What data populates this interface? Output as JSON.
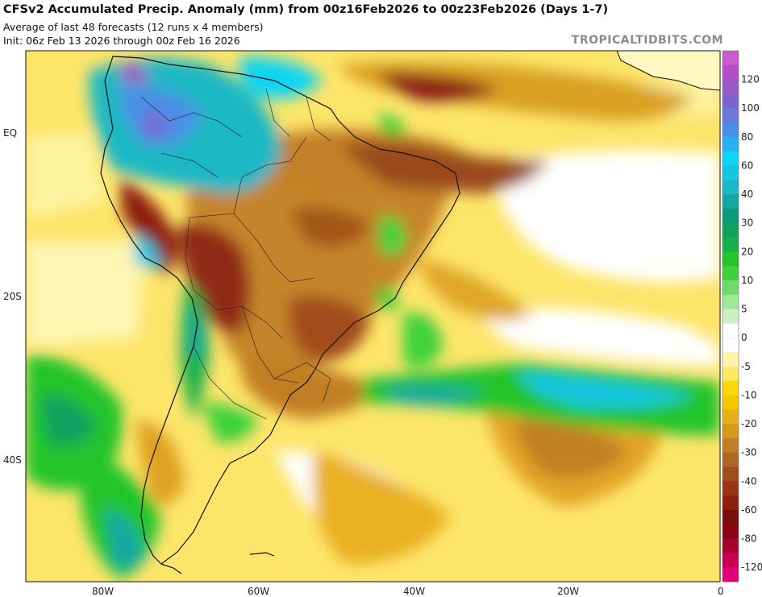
{
  "header": {
    "title": "CFSv2 Accumulated Precip. Anomaly (mm) from 00z16Feb2026 to 00z23Feb2026 (Days 1-7)",
    "subtitle": "Average of last 48 forecasts (12 runs x 4 members)",
    "init": "Init: 06z Feb 13 2026 through 00z Feb 16 2026",
    "brand": "TROPICALTIDBITS.COM"
  },
  "axes": {
    "lat_labels": [
      "EQ",
      "20S",
      "40S"
    ],
    "lon_labels": [
      "80W",
      "60W",
      "40W",
      "20W",
      "0"
    ]
  },
  "colorbar": {
    "unit": "mm",
    "levels": [
      {
        "label": "",
        "color": "#e0007a"
      },
      {
        "label": "-120",
        "color": "#c6004e"
      },
      {
        "label": "",
        "color": "#a8002c"
      },
      {
        "label": "-80",
        "color": "#8a0018"
      },
      {
        "label": "",
        "color": "#780d0d"
      },
      {
        "label": "-60",
        "color": "#8c1d10"
      },
      {
        "label": "",
        "color": "#9a3414"
      },
      {
        "label": "-40",
        "color": "#a14c1c"
      },
      {
        "label": "",
        "color": "#b06624"
      },
      {
        "label": "-30",
        "color": "#c27e24"
      },
      {
        "label": "",
        "color": "#d69a1a"
      },
      {
        "label": "-20",
        "color": "#e6ae18"
      },
      {
        "label": "",
        "color": "#f3c800"
      },
      {
        "label": "-10",
        "color": "#fbd806"
      },
      {
        "label": "",
        "color": "#fee868"
      },
      {
        "label": "-5",
        "color": "#fff4a8"
      },
      {
        "label": "",
        "color": "#ffffff"
      },
      {
        "label": "0",
        "color": "#ffffff"
      },
      {
        "label": "",
        "color": "#c8f2c4"
      },
      {
        "label": "5",
        "color": "#9ee89a"
      },
      {
        "label": "",
        "color": "#6fdc6a"
      },
      {
        "label": "10",
        "color": "#3ed23a"
      },
      {
        "label": "",
        "color": "#22c42c"
      },
      {
        "label": "20",
        "color": "#15b048"
      },
      {
        "label": "",
        "color": "#0da25e"
      },
      {
        "label": "30",
        "color": "#0a9a7a"
      },
      {
        "label": "",
        "color": "#13a7a2"
      },
      {
        "label": "40",
        "color": "#1ab8c4"
      },
      {
        "label": "",
        "color": "#14c8e2"
      },
      {
        "label": "60",
        "color": "#0fd4f2"
      },
      {
        "label": "",
        "color": "#2ab0f0"
      },
      {
        "label": "80",
        "color": "#4a8ee8"
      },
      {
        "label": "",
        "color": "#6a7ad8"
      },
      {
        "label": "100",
        "color": "#8062cc"
      },
      {
        "label": "",
        "color": "#9a5ac6"
      },
      {
        "label": "120",
        "color": "#b24ec8"
      },
      {
        "label": "",
        "color": "#cc5ad0"
      }
    ]
  }
}
